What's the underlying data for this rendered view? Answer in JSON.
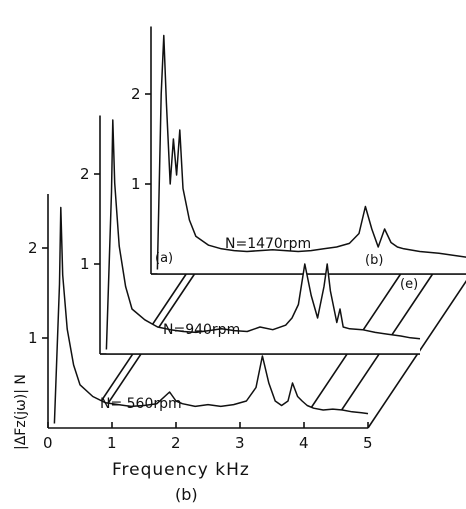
{
  "chart_data": {
    "type": "line",
    "layout": "3d-waterfall",
    "title": "",
    "xlabel": "Frequency  kHz",
    "ylabel": "|ΔFz(jω)|  N",
    "caption": "(b)",
    "x_ticks": [
      "0",
      "1",
      "2",
      "3",
      "4",
      "5"
    ],
    "y_ticks": [
      "1",
      "2"
    ],
    "xlim": [
      0,
      5
    ],
    "ylim": [
      0,
      2.8
    ],
    "grid": false,
    "annotations": [
      "(a)",
      "(b)",
      "(e)"
    ],
    "series": [
      {
        "name": "N= 560rpm",
        "x": [
          0.1,
          0.18,
          0.2,
          0.23,
          0.3,
          0.4,
          0.5,
          0.7,
          0.9,
          1.1,
          1.3,
          1.5,
          1.7,
          1.9,
          2.0,
          2.1,
          2.3,
          2.5,
          2.7,
          2.9,
          3.1,
          3.25,
          3.35,
          3.45,
          3.55,
          3.65,
          3.75,
          3.82,
          3.9,
          3.97,
          4.05,
          4.15,
          4.3,
          4.45,
          4.6,
          4.75,
          4.9,
          5.0
        ],
        "values": [
          0.05,
          1.6,
          2.45,
          1.7,
          1.1,
          0.7,
          0.48,
          0.35,
          0.28,
          0.26,
          0.24,
          0.25,
          0.27,
          0.4,
          0.3,
          0.27,
          0.24,
          0.26,
          0.24,
          0.26,
          0.3,
          0.45,
          0.8,
          0.5,
          0.3,
          0.25,
          0.3,
          0.5,
          0.35,
          0.3,
          0.25,
          0.22,
          0.2,
          0.21,
          0.2,
          0.18,
          0.17,
          0.16
        ]
      },
      {
        "name": "N=940rpm",
        "x": [
          0.1,
          0.18,
          0.2,
          0.23,
          0.3,
          0.4,
          0.5,
          0.7,
          0.9,
          1.1,
          1.3,
          1.5,
          1.7,
          1.9,
          2.1,
          2.3,
          2.5,
          2.7,
          2.9,
          3.0,
          3.1,
          3.2,
          3.3,
          3.4,
          3.5,
          3.55,
          3.6,
          3.7,
          3.75,
          3.8,
          3.9,
          4.1,
          4.3,
          4.5,
          4.7,
          4.85,
          5.0
        ],
        "values": [
          0.05,
          1.8,
          2.6,
          1.9,
          1.2,
          0.75,
          0.5,
          0.38,
          0.3,
          0.27,
          0.25,
          0.24,
          0.26,
          0.28,
          0.26,
          0.25,
          0.3,
          0.27,
          0.32,
          0.4,
          0.55,
          1.0,
          0.65,
          0.4,
          0.75,
          1.0,
          0.7,
          0.35,
          0.5,
          0.3,
          0.28,
          0.27,
          0.24,
          0.22,
          0.2,
          0.18,
          0.17
        ]
      },
      {
        "name": "N=1470rpm",
        "x": [
          0.1,
          0.16,
          0.2,
          0.24,
          0.3,
          0.35,
          0.4,
          0.45,
          0.5,
          0.6,
          0.7,
          0.9,
          1.1,
          1.3,
          1.5,
          1.7,
          1.9,
          2.1,
          2.3,
          2.5,
          2.7,
          2.9,
          3.1,
          3.25,
          3.35,
          3.45,
          3.55,
          3.65,
          3.75,
          3.85,
          3.95,
          4.2,
          4.5,
          4.8,
          5.0
        ],
        "values": [
          0.05,
          2.0,
          2.65,
          1.9,
          1.0,
          1.5,
          1.1,
          1.6,
          0.95,
          0.6,
          0.42,
          0.32,
          0.28,
          0.26,
          0.25,
          0.26,
          0.27,
          0.26,
          0.25,
          0.26,
          0.28,
          0.3,
          0.34,
          0.45,
          0.75,
          0.5,
          0.3,
          0.5,
          0.35,
          0.3,
          0.28,
          0.25,
          0.23,
          0.2,
          0.18
        ]
      }
    ]
  }
}
